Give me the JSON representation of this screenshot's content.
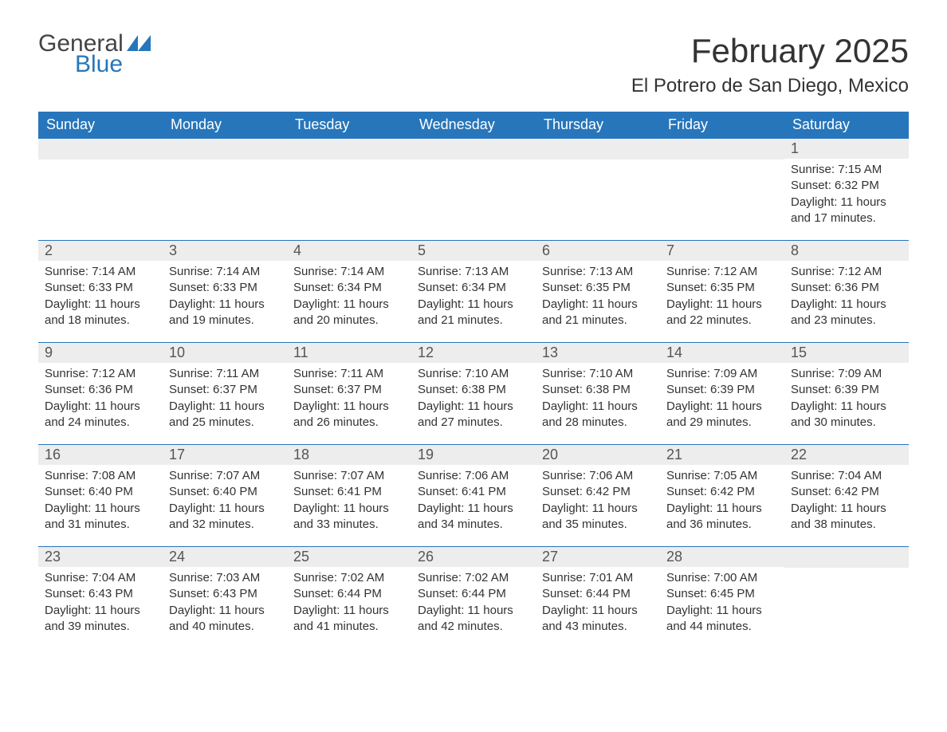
{
  "logo": {
    "general": "General",
    "blue": "Blue",
    "icon_color": "#2776bb"
  },
  "title": "February 2025",
  "location": "El Potrero de San Diego, Mexico",
  "day_headers": [
    "Sunday",
    "Monday",
    "Tuesday",
    "Wednesday",
    "Thursday",
    "Friday",
    "Saturday"
  ],
  "colors": {
    "header_bg": "#2776bb",
    "header_text": "#ffffff",
    "daynum_bg": "#ededed",
    "text": "#333333",
    "row_border": "#2776bb"
  },
  "typography": {
    "title_fontsize": 42,
    "location_fontsize": 24,
    "header_fontsize": 18,
    "daynum_fontsize": 18,
    "body_fontsize": 15
  },
  "weeks": [
    [
      null,
      null,
      null,
      null,
      null,
      null,
      {
        "n": "1",
        "sunrise": "Sunrise: 7:15 AM",
        "sunset": "Sunset: 6:32 PM",
        "dl1": "Daylight: 11 hours",
        "dl2": "and 17 minutes."
      }
    ],
    [
      {
        "n": "2",
        "sunrise": "Sunrise: 7:14 AM",
        "sunset": "Sunset: 6:33 PM",
        "dl1": "Daylight: 11 hours",
        "dl2": "and 18 minutes."
      },
      {
        "n": "3",
        "sunrise": "Sunrise: 7:14 AM",
        "sunset": "Sunset: 6:33 PM",
        "dl1": "Daylight: 11 hours",
        "dl2": "and 19 minutes."
      },
      {
        "n": "4",
        "sunrise": "Sunrise: 7:14 AM",
        "sunset": "Sunset: 6:34 PM",
        "dl1": "Daylight: 11 hours",
        "dl2": "and 20 minutes."
      },
      {
        "n": "5",
        "sunrise": "Sunrise: 7:13 AM",
        "sunset": "Sunset: 6:34 PM",
        "dl1": "Daylight: 11 hours",
        "dl2": "and 21 minutes."
      },
      {
        "n": "6",
        "sunrise": "Sunrise: 7:13 AM",
        "sunset": "Sunset: 6:35 PM",
        "dl1": "Daylight: 11 hours",
        "dl2": "and 21 minutes."
      },
      {
        "n": "7",
        "sunrise": "Sunrise: 7:12 AM",
        "sunset": "Sunset: 6:35 PM",
        "dl1": "Daylight: 11 hours",
        "dl2": "and 22 minutes."
      },
      {
        "n": "8",
        "sunrise": "Sunrise: 7:12 AM",
        "sunset": "Sunset: 6:36 PM",
        "dl1": "Daylight: 11 hours",
        "dl2": "and 23 minutes."
      }
    ],
    [
      {
        "n": "9",
        "sunrise": "Sunrise: 7:12 AM",
        "sunset": "Sunset: 6:36 PM",
        "dl1": "Daylight: 11 hours",
        "dl2": "and 24 minutes."
      },
      {
        "n": "10",
        "sunrise": "Sunrise: 7:11 AM",
        "sunset": "Sunset: 6:37 PM",
        "dl1": "Daylight: 11 hours",
        "dl2": "and 25 minutes."
      },
      {
        "n": "11",
        "sunrise": "Sunrise: 7:11 AM",
        "sunset": "Sunset: 6:37 PM",
        "dl1": "Daylight: 11 hours",
        "dl2": "and 26 minutes."
      },
      {
        "n": "12",
        "sunrise": "Sunrise: 7:10 AM",
        "sunset": "Sunset: 6:38 PM",
        "dl1": "Daylight: 11 hours",
        "dl2": "and 27 minutes."
      },
      {
        "n": "13",
        "sunrise": "Sunrise: 7:10 AM",
        "sunset": "Sunset: 6:38 PM",
        "dl1": "Daylight: 11 hours",
        "dl2": "and 28 minutes."
      },
      {
        "n": "14",
        "sunrise": "Sunrise: 7:09 AM",
        "sunset": "Sunset: 6:39 PM",
        "dl1": "Daylight: 11 hours",
        "dl2": "and 29 minutes."
      },
      {
        "n": "15",
        "sunrise": "Sunrise: 7:09 AM",
        "sunset": "Sunset: 6:39 PM",
        "dl1": "Daylight: 11 hours",
        "dl2": "and 30 minutes."
      }
    ],
    [
      {
        "n": "16",
        "sunrise": "Sunrise: 7:08 AM",
        "sunset": "Sunset: 6:40 PM",
        "dl1": "Daylight: 11 hours",
        "dl2": "and 31 minutes."
      },
      {
        "n": "17",
        "sunrise": "Sunrise: 7:07 AM",
        "sunset": "Sunset: 6:40 PM",
        "dl1": "Daylight: 11 hours",
        "dl2": "and 32 minutes."
      },
      {
        "n": "18",
        "sunrise": "Sunrise: 7:07 AM",
        "sunset": "Sunset: 6:41 PM",
        "dl1": "Daylight: 11 hours",
        "dl2": "and 33 minutes."
      },
      {
        "n": "19",
        "sunrise": "Sunrise: 7:06 AM",
        "sunset": "Sunset: 6:41 PM",
        "dl1": "Daylight: 11 hours",
        "dl2": "and 34 minutes."
      },
      {
        "n": "20",
        "sunrise": "Sunrise: 7:06 AM",
        "sunset": "Sunset: 6:42 PM",
        "dl1": "Daylight: 11 hours",
        "dl2": "and 35 minutes."
      },
      {
        "n": "21",
        "sunrise": "Sunrise: 7:05 AM",
        "sunset": "Sunset: 6:42 PM",
        "dl1": "Daylight: 11 hours",
        "dl2": "and 36 minutes."
      },
      {
        "n": "22",
        "sunrise": "Sunrise: 7:04 AM",
        "sunset": "Sunset: 6:42 PM",
        "dl1": "Daylight: 11 hours",
        "dl2": "and 38 minutes."
      }
    ],
    [
      {
        "n": "23",
        "sunrise": "Sunrise: 7:04 AM",
        "sunset": "Sunset: 6:43 PM",
        "dl1": "Daylight: 11 hours",
        "dl2": "and 39 minutes."
      },
      {
        "n": "24",
        "sunrise": "Sunrise: 7:03 AM",
        "sunset": "Sunset: 6:43 PM",
        "dl1": "Daylight: 11 hours",
        "dl2": "and 40 minutes."
      },
      {
        "n": "25",
        "sunrise": "Sunrise: 7:02 AM",
        "sunset": "Sunset: 6:44 PM",
        "dl1": "Daylight: 11 hours",
        "dl2": "and 41 minutes."
      },
      {
        "n": "26",
        "sunrise": "Sunrise: 7:02 AM",
        "sunset": "Sunset: 6:44 PM",
        "dl1": "Daylight: 11 hours",
        "dl2": "and 42 minutes."
      },
      {
        "n": "27",
        "sunrise": "Sunrise: 7:01 AM",
        "sunset": "Sunset: 6:44 PM",
        "dl1": "Daylight: 11 hours",
        "dl2": "and 43 minutes."
      },
      {
        "n": "28",
        "sunrise": "Sunrise: 7:00 AM",
        "sunset": "Sunset: 6:45 PM",
        "dl1": "Daylight: 11 hours",
        "dl2": "and 44 minutes."
      },
      null
    ]
  ]
}
